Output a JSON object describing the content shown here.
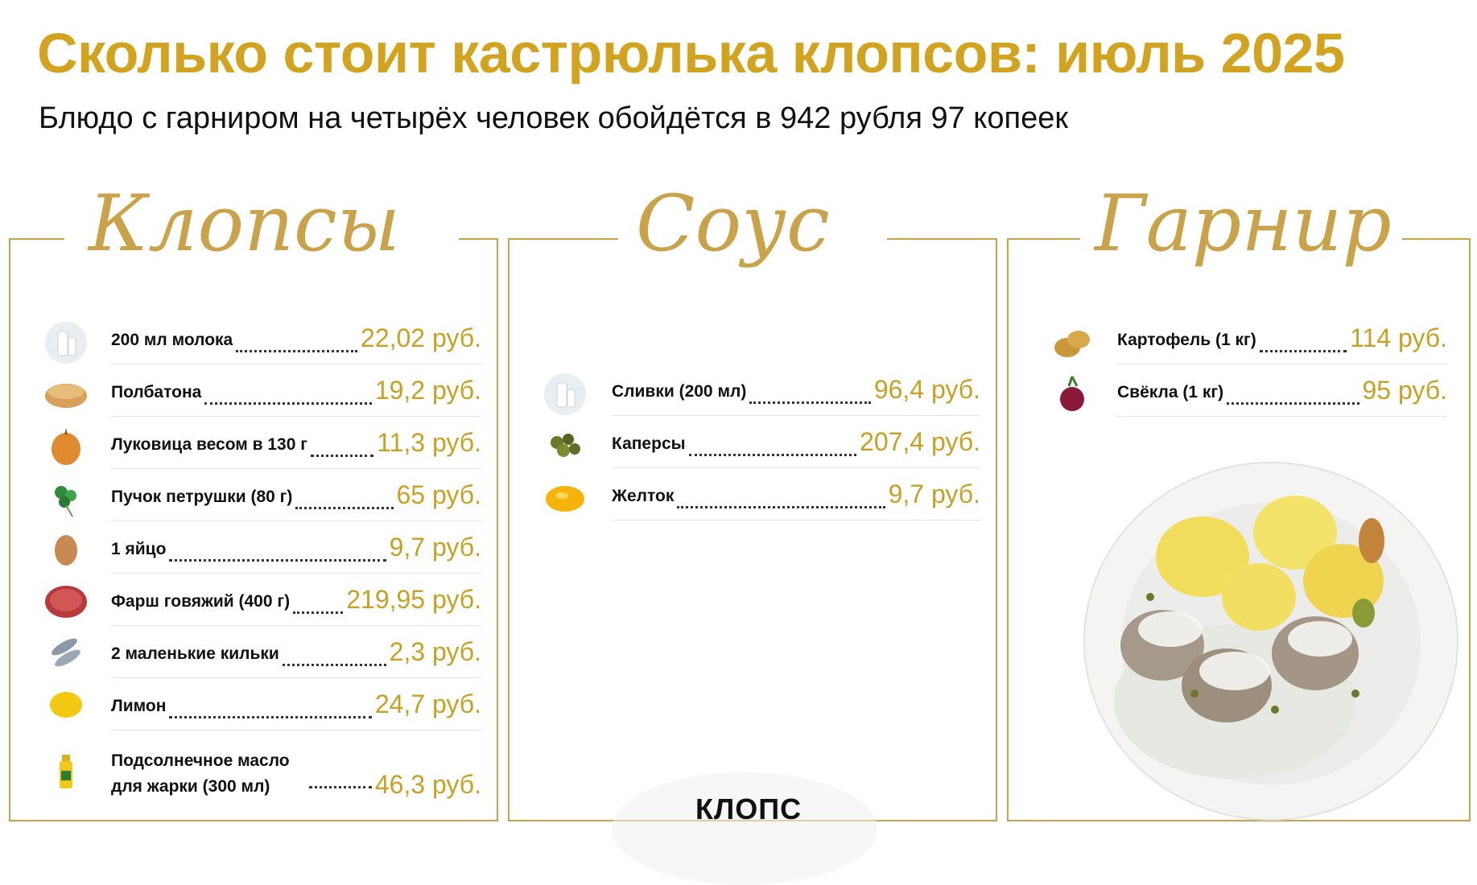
{
  "title": "Сколько стоит кастрюлька клопсов: июль 2025",
  "subtitle": "Блюдо с гарниром на четырёх человек обойдётся в 942 рубля 97 копеек",
  "accent_color": "#d2a31f",
  "columns": [
    {
      "heading": "Клопсы",
      "items": [
        {
          "name": "200 мл молока",
          "price": "22,02 руб.",
          "icon": "milk-icon"
        },
        {
          "name": "Полбатона",
          "price": "19,2 руб.",
          "icon": "bread-icon"
        },
        {
          "name": "Луковица весом в 130 г",
          "price": "11,3 руб.",
          "icon": "onion-icon"
        },
        {
          "name": "Пучок петрушки (80 г)",
          "price": "65 руб.",
          "icon": "parsley-icon"
        },
        {
          "name": "1 яйцо",
          "price": "9,7 руб.",
          "icon": "egg-icon"
        },
        {
          "name": "Фарш говяжий (400 г)",
          "price": "219,95 руб.",
          "icon": "minced-meat-icon"
        },
        {
          "name": "2 маленькие кильки",
          "price": "2,3 руб.",
          "icon": "fish-icon"
        },
        {
          "name": "Лимон",
          "price": "24,7 руб.",
          "icon": "lemon-icon"
        },
        {
          "name": "Подсолнечное масло",
          "name2": "для жарки (300 мл)",
          "price": "46,3 руб.",
          "icon": "oil-bottle-icon"
        }
      ]
    },
    {
      "heading": "Соус",
      "items": [
        {
          "name": "Сливки (200 мл)",
          "price": "96,4 руб.",
          "icon": "cream-icon"
        },
        {
          "name": "Каперсы",
          "price": "207,4 руб.",
          "icon": "capers-icon"
        },
        {
          "name": "Желток",
          "price": "9,7 руб.",
          "icon": "yolk-icon"
        }
      ]
    },
    {
      "heading": "Гарнир",
      "items": [
        {
          "name": "Картофель (1 кг)",
          "price": "114 руб.",
          "icon": "potato-icon"
        },
        {
          "name": "Свёкла (1 кг)",
          "price": "95 руб.",
          "icon": "beet-icon"
        }
      ]
    }
  ],
  "logo": "КЛОПС",
  "dish_image": "klopse-plate-illustration"
}
